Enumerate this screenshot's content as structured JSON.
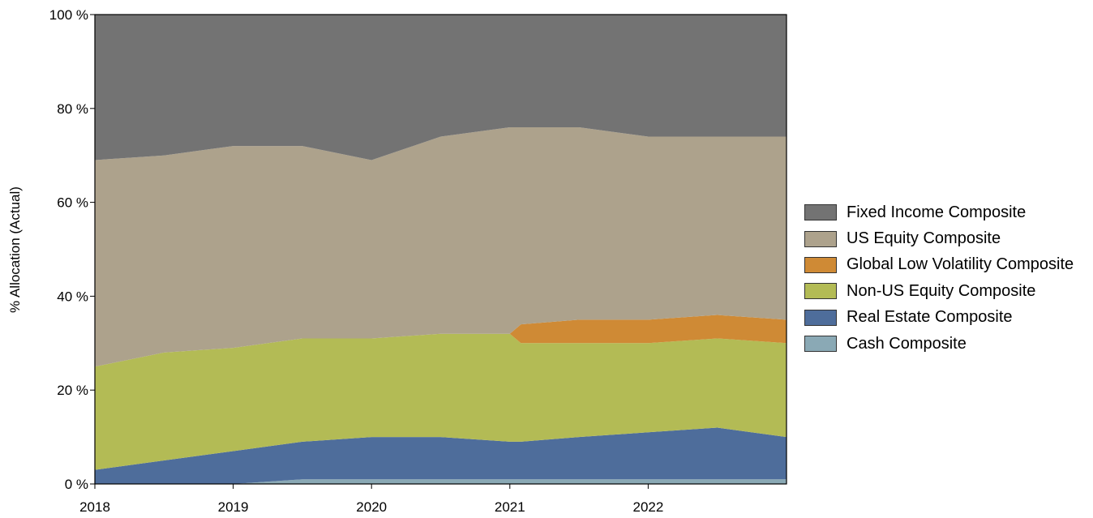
{
  "chart_data": {
    "type": "area",
    "stacked": true,
    "ylabel": "% Allocation (Actual)",
    "ylim": [
      0,
      100
    ],
    "yticks": [
      0,
      20,
      40,
      60,
      80,
      100
    ],
    "ytick_labels": [
      "0 %",
      "20 %",
      "40 %",
      "60 %",
      "80 %",
      "100 %"
    ],
    "xlim": [
      2018.0,
      2023.0
    ],
    "xticks": [
      2018,
      2019,
      2020,
      2021,
      2022
    ],
    "xtick_labels": [
      "2018",
      "2019",
      "2020",
      "2021",
      "2022"
    ],
    "grid": false,
    "legend_position": "right",
    "x": [
      2018.0,
      2018.5,
      2019.0,
      2019.5,
      2020.0,
      2020.5,
      2021.0,
      2021.08,
      2021.5,
      2022.0,
      2022.5,
      2023.0
    ],
    "series": [
      {
        "name": "Cash Composite",
        "color": "#8aa9b5",
        "values": [
          0,
          0,
          0,
          1,
          1,
          1,
          1,
          1,
          1,
          1,
          1,
          1
        ]
      },
      {
        "name": "Real Estate Composite",
        "color": "#4e6d9b",
        "values": [
          3,
          5,
          7,
          8,
          9,
          9,
          8,
          8,
          9,
          10,
          11,
          9
        ]
      },
      {
        "name": "Non-US Equity Composite",
        "color": "#b3bb55",
        "values": [
          22,
          23,
          22,
          22,
          21,
          22,
          23,
          21,
          20,
          19,
          19,
          20
        ]
      },
      {
        "name": "Global Low Volatility Composite",
        "color": "#cf8a35",
        "values": [
          0,
          0,
          0,
          0,
          0,
          0,
          0,
          4,
          5,
          5,
          5,
          5
        ]
      },
      {
        "name": "US Equity Composite",
        "color": "#ada28c",
        "values": [
          44,
          42,
          43,
          41,
          38,
          42,
          44,
          42,
          41,
          39,
          38,
          39
        ]
      },
      {
        "name": "Fixed Income Composite",
        "color": "#737373",
        "values": [
          31,
          30,
          28,
          28,
          31,
          26,
          24,
          24,
          24,
          26,
          26,
          26
        ]
      }
    ],
    "legend_order": [
      "Fixed Income Composite",
      "US Equity Composite",
      "Global Low Volatility Composite",
      "Non-US Equity Composite",
      "Real Estate Composite",
      "Cash Composite"
    ]
  }
}
